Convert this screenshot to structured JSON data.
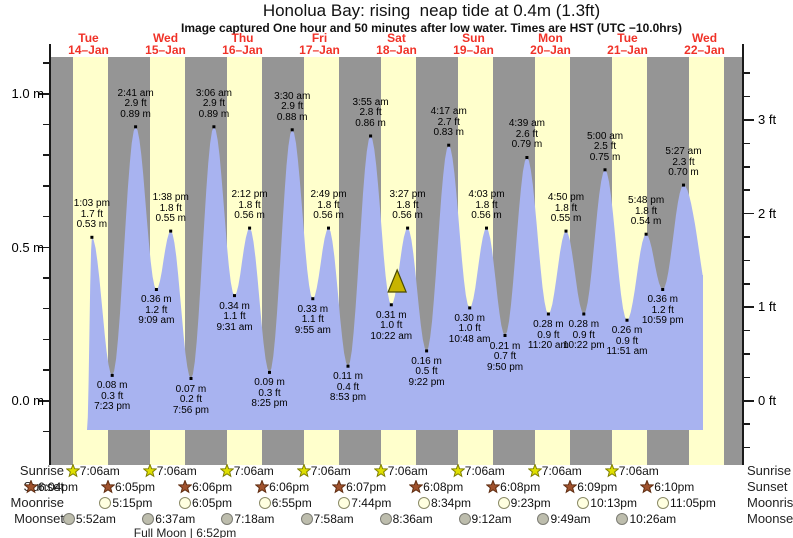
{
  "title": "Honolua Bay: rising  neap tide at 0.4m (1.3ft)",
  "subtitle": "Image captured One hour and 50 minutes after low water. Times are HST (UTC −10.0hrs)",
  "days": [
    {
      "name": "Tue",
      "date": "14–Jan"
    },
    {
      "name": "Wed",
      "date": "15–Jan"
    },
    {
      "name": "Thu",
      "date": "16–Jan"
    },
    {
      "name": "Fri",
      "date": "17–Jan"
    },
    {
      "name": "Sat",
      "date": "18–Jan"
    },
    {
      "name": "Sun",
      "date": "19–Jan"
    },
    {
      "name": "Mon",
      "date": "20–Jan"
    },
    {
      "name": "Tue",
      "date": "21–Jan"
    },
    {
      "name": "Wed",
      "date": "22–Jan"
    }
  ],
  "chart_data": {
    "type": "area",
    "title": "Honolua Bay: rising  neap tide at 0.4m (1.3ft)",
    "y_axis_left": {
      "unit": "m",
      "tick_labels": [
        "1.0 m",
        "0.5 m",
        "0.0 m"
      ],
      "major_values": [
        1.0,
        0.5,
        0.0
      ],
      "minor_step": 0.1
    },
    "y_axis_right": {
      "unit": "ft",
      "tick_labels": [
        "3 ft",
        "2 ft",
        "1 ft",
        "0 ft"
      ],
      "major_values": [
        3,
        2,
        1,
        0
      ],
      "minor_step": 0.25
    },
    "extremes": [
      {
        "day": 0,
        "type": "high",
        "time": "1:03 pm",
        "m": 0.53,
        "m_label": "0.53 m",
        "ft_label": "1.7 ft"
      },
      {
        "day": 0,
        "type": "low",
        "time": "7:23 pm",
        "m": 0.08,
        "m_label": "0.08 m",
        "ft_label": "0.3 ft"
      },
      {
        "day": 1,
        "type": "high",
        "time": "2:41 am",
        "m": 0.89,
        "m_label": "0.89 m",
        "ft_label": "2.9 ft"
      },
      {
        "day": 1,
        "type": "low",
        "time": "9:09 am",
        "m": 0.36,
        "m_label": "0.36 m",
        "ft_label": "1.2 ft"
      },
      {
        "day": 1,
        "type": "high",
        "time": "1:38 pm",
        "m": 0.55,
        "m_label": "0.55 m",
        "ft_label": "1.8 ft"
      },
      {
        "day": 1,
        "type": "low",
        "time": "7:56 pm",
        "m": 0.07,
        "m_label": "0.07 m",
        "ft_label": "0.2 ft"
      },
      {
        "day": 2,
        "type": "high",
        "time": "3:06 am",
        "m": 0.89,
        "m_label": "0.89 m",
        "ft_label": "2.9 ft"
      },
      {
        "day": 2,
        "type": "low",
        "time": "9:31 am",
        "m": 0.34,
        "m_label": "0.34 m",
        "ft_label": "1.1 ft"
      },
      {
        "day": 2,
        "type": "high",
        "time": "2:12 pm",
        "m": 0.56,
        "m_label": "0.56 m",
        "ft_label": "1.8 ft"
      },
      {
        "day": 2,
        "type": "low",
        "time": "8:25 pm",
        "m": 0.09,
        "m_label": "0.09 m",
        "ft_label": "0.3 ft"
      },
      {
        "day": 3,
        "type": "high",
        "time": "3:30 am",
        "m": 0.88,
        "m_label": "0.88 m",
        "ft_label": "2.9 ft"
      },
      {
        "day": 3,
        "type": "low",
        "time": "9:55 am",
        "m": 0.33,
        "m_label": "0.33 m",
        "ft_label": "1.1 ft"
      },
      {
        "day": 3,
        "type": "high",
        "time": "2:49 pm",
        "m": 0.56,
        "m_label": "0.56 m",
        "ft_label": "1.8 ft"
      },
      {
        "day": 3,
        "type": "low",
        "time": "8:53 pm",
        "m": 0.11,
        "m_label": "0.11 m",
        "ft_label": "0.4 ft"
      },
      {
        "day": 4,
        "type": "high",
        "time": "3:55 am",
        "m": 0.86,
        "m_label": "0.86 m",
        "ft_label": "2.8 ft"
      },
      {
        "day": 4,
        "type": "low",
        "time": "10:22 am",
        "m": 0.31,
        "m_label": "0.31 m",
        "ft_label": "1.0 ft"
      },
      {
        "day": 4,
        "type": "high",
        "time": "3:27 pm",
        "m": 0.56,
        "m_label": "0.56 m",
        "ft_label": "1.8 ft"
      },
      {
        "day": 4,
        "type": "low",
        "time": "9:22 pm",
        "m": 0.16,
        "m_label": "0.16 m",
        "ft_label": "0.5 ft"
      },
      {
        "day": 5,
        "type": "high",
        "time": "4:17 am",
        "m": 0.83,
        "m_label": "0.83 m",
        "ft_label": "2.7 ft"
      },
      {
        "day": 5,
        "type": "low",
        "time": "10:48 am",
        "m": 0.3,
        "m_label": "0.30 m",
        "ft_label": "1.0 ft"
      },
      {
        "day": 5,
        "type": "high",
        "time": "4:03 pm",
        "m": 0.56,
        "m_label": "0.56 m",
        "ft_label": "1.8 ft"
      },
      {
        "day": 5,
        "type": "low",
        "time": "9:50 pm",
        "m": 0.21,
        "m_label": "0.21 m",
        "ft_label": "0.7 ft"
      },
      {
        "day": 6,
        "type": "high",
        "time": "4:39 am",
        "m": 0.79,
        "m_label": "0.79 m",
        "ft_label": "2.6 ft"
      },
      {
        "day": 6,
        "type": "low",
        "time": "11:20 am",
        "m": 0.28,
        "m_label": "0.28 m",
        "ft_label": "0.9 ft"
      },
      {
        "day": 6,
        "type": "high",
        "time": "4:50 pm",
        "m": 0.55,
        "m_label": "0.55 m",
        "ft_label": "1.8 ft"
      },
      {
        "day": 6,
        "type": "low",
        "time": "10:22 pm",
        "m": 0.28,
        "m_label": "0.28 m",
        "ft_label": "0.9 ft"
      },
      {
        "day": 7,
        "type": "high",
        "time": "5:00 am",
        "m": 0.75,
        "m_label": "0.75 m",
        "ft_label": "2.5 ft"
      },
      {
        "day": 7,
        "type": "low",
        "time": "11:51 am",
        "m": 0.26,
        "m_label": "0.26 m",
        "ft_label": "0.9 ft"
      },
      {
        "day": 7,
        "type": "high",
        "time": "5:48 pm",
        "m": 0.54,
        "m_label": "0.54 m",
        "ft_label": "1.8 ft"
      },
      {
        "day": 7,
        "type": "low",
        "time": "10:59 pm",
        "m": 0.36,
        "m_label": "0.36 m",
        "ft_label": "1.2 ft"
      },
      {
        "day": 8,
        "type": "high",
        "time": "5:27 am",
        "m": 0.7,
        "m_label": "0.70 m",
        "ft_label": "2.3 ft"
      }
    ],
    "current_time_marker": {
      "day": 4,
      "time": "12:12 pm"
    }
  },
  "almanac": {
    "rows": [
      {
        "label": "Sunrise",
        "icon": "sunrise-star-icon",
        "day_offset": 0,
        "events": [
          "7:06am",
          "7:06am",
          "7:06am",
          "7:06am",
          "7:06am",
          "7:06am",
          "7:06am",
          "7:06am"
        ]
      },
      {
        "label": "Sunset",
        "icon": "sunset-star-icon",
        "day_offset": -1,
        "events": [
          "6:04pm",
          "6:05pm",
          "6:06pm",
          "6:06pm",
          "6:07pm",
          "6:08pm",
          "6:08pm",
          "6:09pm",
          "6:10pm"
        ]
      },
      {
        "label": "Moonrise",
        "icon": "moonrise-circle-icon",
        "day_offset": 0,
        "events": [
          "5:15pm",
          "6:05pm",
          "6:55pm",
          "7:44pm",
          "8:34pm",
          "9:23pm",
          "10:13pm",
          "11:05pm"
        ]
      },
      {
        "label": "Moonset",
        "icon": "moonset-circle-icon",
        "day_offset": 0,
        "events": [
          "5:52am",
          "6:37am",
          "7:18am",
          "7:58am",
          "8:36am",
          "9:12am",
          "9:49am",
          "10:26am"
        ]
      }
    ],
    "footnote": "Full Moon | 6:52pm"
  },
  "colors": {
    "daylight_band": "#ffffcc",
    "night_band": "#959595",
    "tide_fill": "#a8b3f0",
    "day_label_red": "#f03228",
    "marker_fill": "#c8b400",
    "marker_stroke": "#4a4a00",
    "sunrise_star": "#dfdf00",
    "sunrise_star_stroke": "#7d7d00",
    "sunset_star": "#a0522d",
    "sunset_star_stroke": "#5e2c10",
    "moonrise_circle": "#ffffe0",
    "moonrise_circle_stroke": "#8a8a66",
    "moonset_circle": "#bdbdad",
    "moonset_circle_stroke": "#7c7c74"
  }
}
